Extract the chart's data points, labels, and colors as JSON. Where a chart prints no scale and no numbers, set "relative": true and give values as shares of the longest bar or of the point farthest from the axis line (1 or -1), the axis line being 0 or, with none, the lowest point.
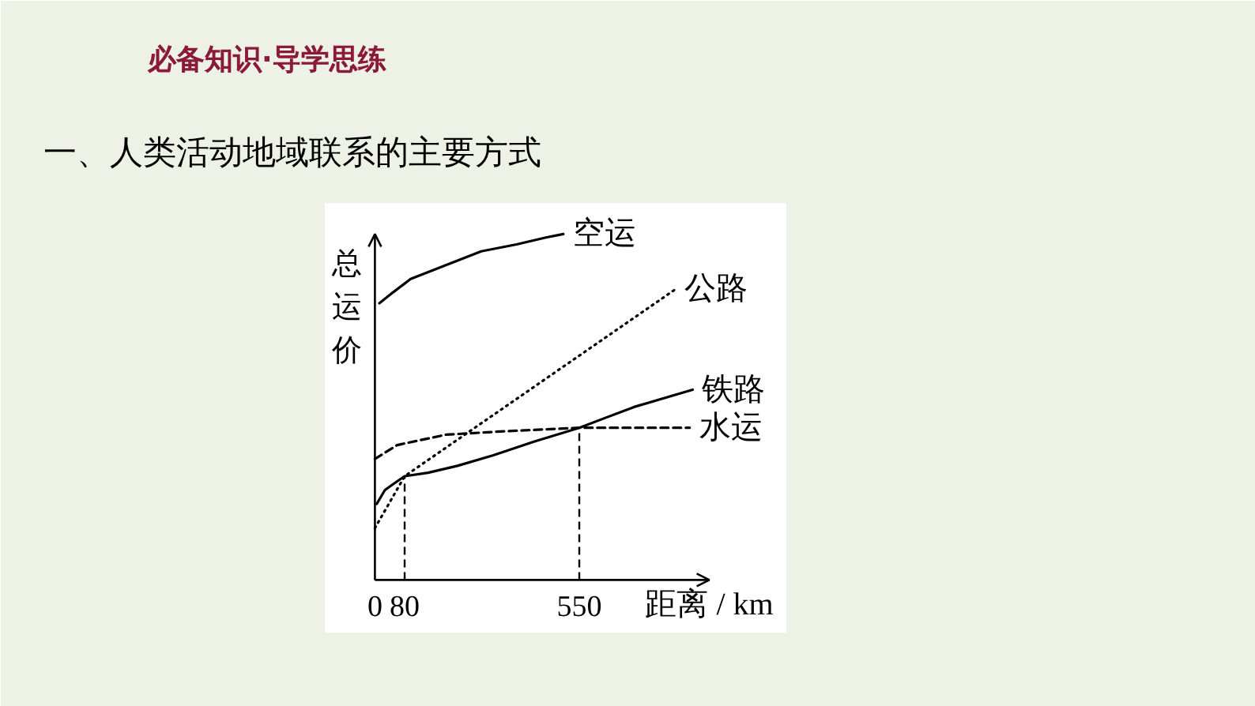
{
  "chart_data": {
    "type": "line",
    "title": "一、人类活动地域联系的主要方式",
    "annotations": [
      "必备知识·导学思练"
    ],
    "xlabel": "距离 / km",
    "ylabel": "总运价",
    "relative": true,
    "xlim": [
      0,
      900
    ],
    "xticks": [
      0,
      80,
      550
    ],
    "series": [
      {
        "name": "空运",
        "color": "#000000",
        "line_style": "solid",
        "x": [
          12,
          47,
          96,
          191,
          286,
          381,
          460,
          507
        ],
        "values": [
          0.8,
          0.83,
          0.87,
          0.91,
          0.95,
          0.97,
          0.99,
          1.0
        ]
      },
      {
        "name": "公路",
        "color": "#000000",
        "line_style": "dotted",
        "x": [
          0,
          80,
          808
        ],
        "values": [
          0.15,
          0.3,
          0.84
        ]
      },
      {
        "name": "铁路",
        "color": "#000000",
        "line_style": "solid",
        "x": [
          5,
          27,
          53,
          80,
          143,
          222,
          317,
          428,
          550,
          697,
          855
        ],
        "values": [
          0.22,
          0.26,
          0.28,
          0.3,
          0.31,
          0.33,
          0.36,
          0.4,
          0.44,
          0.5,
          0.55
        ]
      },
      {
        "name": "水运",
        "color": "#000000",
        "line_style": "dashed",
        "x": [
          0,
          60,
          191,
          349,
          550,
          847
        ],
        "values": [
          0.35,
          0.39,
          0.42,
          0.43,
          0.44,
          0.44
        ]
      }
    ],
    "ref_lines": [
      {
        "axis": "x",
        "value": 80,
        "line_style": "dashed"
      },
      {
        "axis": "x",
        "value": 550,
        "line_style": "dashed"
      }
    ]
  }
}
